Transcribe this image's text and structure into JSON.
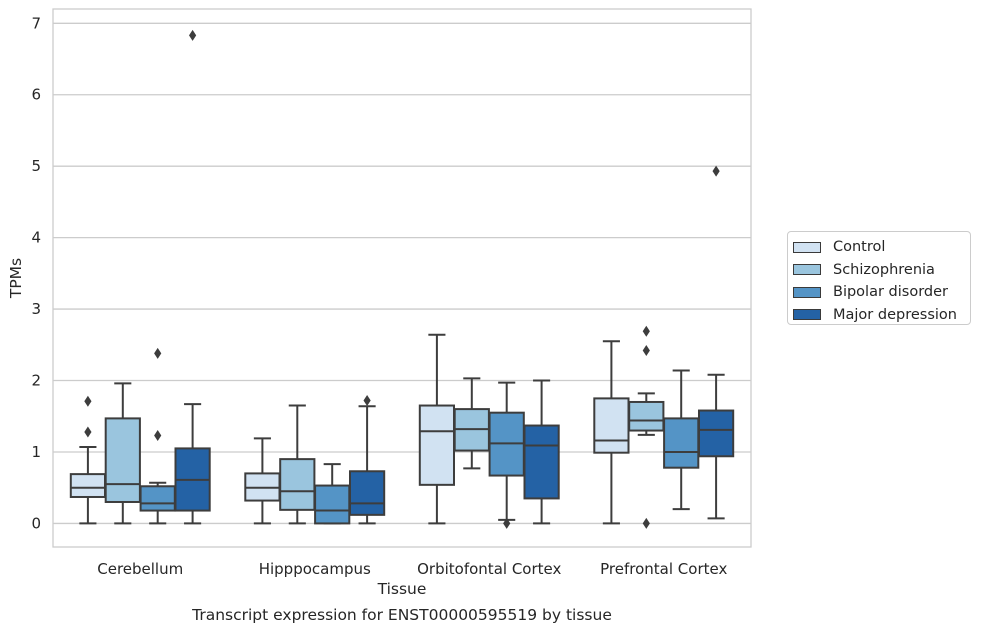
{
  "chart_data": {
    "type": "boxplot",
    "caption": "Transcript expression for ENST00000595519 by tissue",
    "xlabel": "Tissue",
    "ylabel": "TPMs",
    "ylim": [
      -0.33,
      7.2
    ],
    "yticks": [
      0,
      1,
      2,
      3,
      4,
      5,
      6,
      7
    ],
    "grid": "horizontal",
    "legend_position": "right",
    "categories": [
      "Cerebellum",
      "Hipppocampus",
      "Orbitofontal Cortex",
      "Prefrontal Cortex"
    ],
    "series": [
      {
        "name": "Control",
        "color": "#d1e2f2",
        "boxes": [
          {
            "whislo": 0.0,
            "q1": 0.37,
            "med": 0.5,
            "q3": 0.69,
            "whishi": 1.07,
            "fliers": [
              1.28,
              1.71
            ]
          },
          {
            "whislo": 0.0,
            "q1": 0.32,
            "med": 0.5,
            "q3": 0.7,
            "whishi": 1.19,
            "fliers": []
          },
          {
            "whislo": 0.0,
            "q1": 0.54,
            "med": 1.29,
            "q3": 1.65,
            "whishi": 2.64,
            "fliers": []
          },
          {
            "whislo": 0.0,
            "q1": 0.99,
            "med": 1.16,
            "q3": 1.75,
            "whishi": 2.55,
            "fliers": []
          }
        ]
      },
      {
        "name": "Schizophrenia",
        "color": "#9ac5de",
        "boxes": [
          {
            "whislo": 0.0,
            "q1": 0.3,
            "med": 0.55,
            "q3": 1.47,
            "whishi": 1.96,
            "fliers": []
          },
          {
            "whislo": 0.0,
            "q1": 0.19,
            "med": 0.45,
            "q3": 0.9,
            "whishi": 1.65,
            "fliers": []
          },
          {
            "whislo": 0.77,
            "q1": 1.02,
            "med": 1.32,
            "q3": 1.6,
            "whishi": 2.03,
            "fliers": []
          },
          {
            "whislo": 1.24,
            "q1": 1.3,
            "med": 1.44,
            "q3": 1.7,
            "whishi": 1.82,
            "fliers": [
              0.0,
              2.42,
              2.69
            ]
          }
        ]
      },
      {
        "name": "Bipolar disorder",
        "color": "#5494c6",
        "boxes": [
          {
            "whislo": 0.0,
            "q1": 0.18,
            "med": 0.28,
            "q3": 0.52,
            "whishi": 0.57,
            "fliers": [
              1.23,
              2.38
            ]
          },
          {
            "whislo": 0.0,
            "q1": 0.0,
            "med": 0.18,
            "q3": 0.53,
            "whishi": 0.83,
            "fliers": []
          },
          {
            "whislo": 0.05,
            "q1": 0.67,
            "med": 1.12,
            "q3": 1.55,
            "whishi": 1.97,
            "fliers": [
              0.0
            ]
          },
          {
            "whislo": 0.2,
            "q1": 0.78,
            "med": 1.0,
            "q3": 1.47,
            "whishi": 2.14,
            "fliers": []
          }
        ]
      },
      {
        "name": "Major depression",
        "color": "#2462a5",
        "boxes": [
          {
            "whislo": 0.0,
            "q1": 0.18,
            "med": 0.61,
            "q3": 1.05,
            "whishi": 1.67,
            "fliers": [
              6.83
            ]
          },
          {
            "whislo": 0.0,
            "q1": 0.12,
            "med": 0.28,
            "q3": 0.73,
            "whishi": 1.64,
            "fliers": [
              1.72
            ]
          },
          {
            "whislo": 0.0,
            "q1": 0.35,
            "med": 1.09,
            "q3": 1.37,
            "whishi": 2.0,
            "fliers": []
          },
          {
            "whislo": 0.07,
            "q1": 0.94,
            "med": 1.31,
            "q3": 1.58,
            "whishi": 2.08,
            "fliers": [
              4.93
            ]
          }
        ]
      }
    ]
  }
}
